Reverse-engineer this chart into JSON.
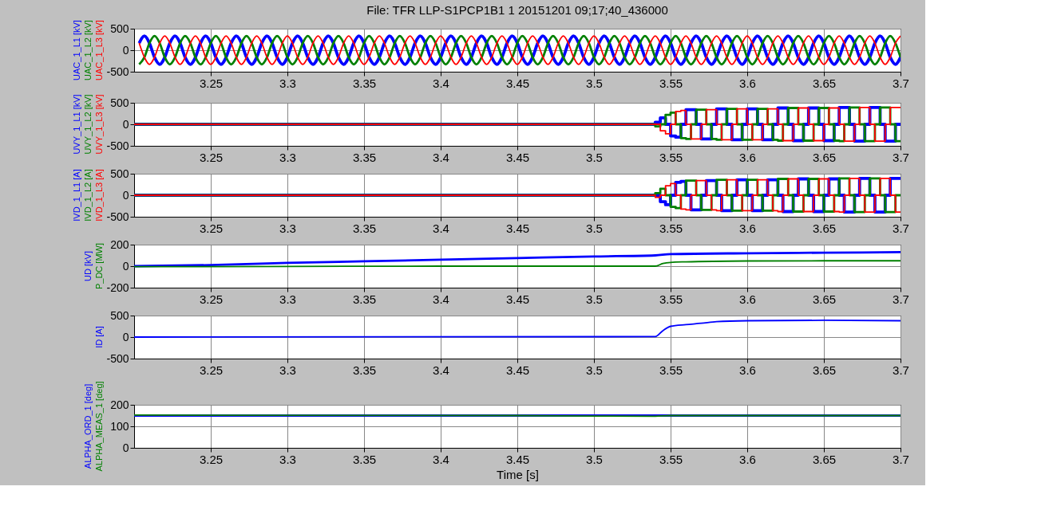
{
  "chart_data": [
    {
      "type": "line",
      "title": "File: TFR LLP-S1PCP1B1 1 20151201 09;17;40_436000",
      "xlim": [
        3.2,
        3.7
      ],
      "xticks": [
        3.25,
        3.3,
        3.35,
        3.4,
        3.45,
        3.5,
        3.55,
        3.6,
        3.65,
        3.7
      ],
      "ylim": [
        -500,
        500
      ],
      "yticks": [
        -500,
        0,
        500
      ],
      "grid": true,
      "x": [
        3.2033,
        3.2067,
        3.21,
        3.2133,
        3.2167,
        3.22,
        3.2233,
        3.2267,
        3.23,
        3.2333,
        3.2367,
        3.24,
        3.2433,
        3.2467,
        3.25,
        3.2533,
        3.2567,
        3.26,
        3.2633,
        3.2667,
        3.27,
        3.2733,
        3.2767,
        3.28,
        3.2833,
        3.2867,
        3.29,
        3.2933,
        3.2967,
        3.3,
        3.3033,
        3.3067,
        3.31,
        3.3133,
        3.3167,
        3.32,
        3.3233,
        3.3267,
        3.33,
        3.3333,
        3.3367,
        3.34,
        3.3433,
        3.3467,
        3.35,
        3.3533,
        3.3567,
        3.36,
        3.3633,
        3.3667,
        3.37,
        3.3733,
        3.3767,
        3.38,
        3.3833,
        3.3867,
        3.39,
        3.3933,
        3.3967,
        3.4,
        3.4033,
        3.4067,
        3.41,
        3.4133,
        3.4167,
        3.42,
        3.4233,
        3.4267,
        3.43,
        3.4333,
        3.4367,
        3.44,
        3.4433,
        3.4467,
        3.45,
        3.4533,
        3.4567,
        3.46,
        3.4633,
        3.4667,
        3.47,
        3.4733,
        3.4767,
        3.48,
        3.4833,
        3.4867,
        3.49,
        3.4933,
        3.4967,
        3.5,
        3.5033,
        3.5067,
        3.51,
        3.5133,
        3.5167,
        3.52,
        3.5233,
        3.5267,
        3.53,
        3.5333,
        3.5367,
        3.54,
        3.5433,
        3.5467,
        3.55,
        3.5533,
        3.5567,
        3.56,
        3.5633,
        3.5667,
        3.57,
        3.5733,
        3.5767,
        3.58,
        3.5833,
        3.5867,
        3.59,
        3.5933,
        3.5967,
        3.6,
        3.6033,
        3.6067,
        3.61,
        3.6133,
        3.6167,
        3.62,
        3.6233,
        3.6267,
        3.63,
        3.6333,
        3.6367,
        3.64,
        3.6433,
        3.6467,
        3.65,
        3.6533,
        3.6567,
        3.66,
        3.6633,
        3.6667,
        3.67,
        3.6733,
        3.6767,
        3.68,
        3.6833,
        3.6867,
        3.69,
        3.6933,
        3.6967,
        3.7
      ],
      "series": [
        {
          "name": "UAC_1_L1 [kV]",
          "color": "#0000ff",
          "values": [
            165,
            330,
            165,
            -165,
            -330,
            -165,
            165,
            330,
            165,
            -165,
            -330,
            -165,
            165,
            330,
            165,
            -165,
            -330,
            -165,
            165,
            330,
            165,
            -165,
            -330,
            -165,
            165,
            330,
            165,
            -165,
            -330,
            -165,
            165,
            330,
            165,
            -165,
            -330,
            -165,
            165,
            330,
            165,
            -165,
            -330,
            -165,
            165,
            330,
            165,
            -165,
            -330,
            -165,
            165,
            330,
            165,
            -165,
            -330,
            -165,
            165,
            330,
            165,
            -165,
            -330,
            -165,
            165,
            330,
            165,
            -165,
            -330,
            -165,
            165,
            330,
            165,
            -165,
            -330,
            -165,
            165,
            330,
            165,
            -165,
            -330,
            -165,
            165,
            330,
            165,
            -165,
            -330,
            -165,
            165,
            330,
            165,
            -165,
            -330,
            -165,
            165,
            330,
            165,
            -165,
            -330,
            -165,
            165,
            330,
            165,
            -165,
            -330,
            -165,
            165,
            330,
            165,
            -165,
            -330,
            -165,
            165,
            330,
            165,
            -165,
            -330,
            -165,
            165,
            330,
            165,
            -165,
            -330,
            -165,
            165,
            330,
            165,
            -165,
            -330,
            -165,
            165,
            330,
            165,
            -165,
            -330,
            -165,
            165,
            330,
            165,
            -165,
            -330,
            -165,
            165,
            330,
            165,
            -165,
            -330,
            -165,
            165,
            330,
            165,
            -165,
            -330,
            -165
          ]
        },
        {
          "name": "UAC_1_L2 [kV]",
          "color": "#008000",
          "values": [
            -330,
            -165,
            165,
            330,
            165,
            -165,
            -330,
            -165,
            165,
            330,
            165,
            -165,
            -330,
            -165,
            165,
            330,
            165,
            -165,
            -330,
            -165,
            165,
            330,
            165,
            -165,
            -330,
            -165,
            165,
            330,
            165,
            -165,
            -330,
            -165,
            165,
            330,
            165,
            -165,
            -330,
            -165,
            165,
            330,
            165,
            -165,
            -330,
            -165,
            165,
            330,
            165,
            -165,
            -330,
            -165,
            165,
            330,
            165,
            -165,
            -330,
            -165,
            165,
            330,
            165,
            -165,
            -330,
            -165,
            165,
            330,
            165,
            -165,
            -330,
            -165,
            165,
            330,
            165,
            -165,
            -330,
            -165,
            165,
            330,
            165,
            -165,
            -330,
            -165,
            165,
            330,
            165,
            -165,
            -330,
            -165,
            165,
            330,
            165,
            -165,
            -330,
            -165,
            165,
            330,
            165,
            -165,
            -330,
            -165,
            165,
            330,
            165,
            -165,
            -330,
            -165,
            165,
            330,
            165,
            -165,
            -330,
            -165,
            165,
            330,
            165,
            -165,
            -330,
            -165,
            165,
            330,
            165,
            -165,
            -330,
            -165,
            165,
            330,
            165,
            -165,
            -330,
            -165,
            165,
            330,
            165,
            -165,
            -330,
            -165,
            165,
            330,
            165,
            -165,
            -330,
            -165,
            165,
            330,
            165,
            -165,
            -330,
            -165,
            165,
            330,
            165,
            -165
          ]
        },
        {
          "name": "UAC_1_L3 [kV]",
          "color": "#ff0000",
          "values": [
            165,
            -165,
            -330,
            -165,
            165,
            330,
            165,
            -165,
            -330,
            -165,
            165,
            330,
            165,
            -165,
            -330,
            -165,
            165,
            330,
            165,
            -165,
            -330,
            -165,
            165,
            330,
            165,
            -165,
            -330,
            -165,
            165,
            330,
            165,
            -165,
            -330,
            -165,
            165,
            330,
            165,
            -165,
            -330,
            -165,
            165,
            330,
            165,
            -165,
            -330,
            -165,
            165,
            330,
            165,
            -165,
            -330,
            -165,
            165,
            330,
            165,
            -165,
            -330,
            -165,
            165,
            330,
            165,
            -165,
            -330,
            -165,
            165,
            330,
            165,
            -165,
            -330,
            -165,
            165,
            330,
            165,
            -165,
            -330,
            -165,
            165,
            330,
            165,
            -165,
            -330,
            -165,
            165,
            330,
            165,
            -165,
            -330,
            -165,
            165,
            330,
            165,
            -165,
            -330,
            -165,
            165,
            330,
            165,
            -165,
            -330,
            -165,
            165,
            330,
            165,
            -165,
            -330,
            -165,
            165,
            330,
            165,
            -165,
            -330,
            -165,
            165,
            330,
            165,
            -165,
            -330,
            -165,
            165,
            330,
            165,
            -165,
            -330,
            -165,
            165,
            330,
            165,
            -165,
            -330,
            -165,
            165,
            330,
            165,
            -165,
            -330,
            -165,
            165,
            330,
            165,
            -165,
            -330,
            -165,
            165,
            330,
            165,
            -165,
            -330,
            -165,
            165,
            330
          ]
        }
      ]
    },
    {
      "type": "step",
      "xlim": [
        3.2,
        3.7
      ],
      "xticks": [
        3.25,
        3.3,
        3.35,
        3.4,
        3.45,
        3.5,
        3.55,
        3.6,
        3.65,
        3.7
      ],
      "ylim": [
        -500,
        500
      ],
      "yticks": [
        -500,
        0,
        500
      ],
      "grid": true,
      "x": [
        3.2,
        3.54,
        3.5433,
        3.5467,
        3.55,
        3.5533,
        3.5567,
        3.56,
        3.5633,
        3.5667,
        3.57,
        3.5733,
        3.5767,
        3.58,
        3.5833,
        3.5867,
        3.59,
        3.5933,
        3.5967,
        3.6,
        3.6033,
        3.6067,
        3.61,
        3.6133,
        3.6167,
        3.62,
        3.6233,
        3.6267,
        3.63,
        3.6333,
        3.6367,
        3.64,
        3.6433,
        3.6467,
        3.65,
        3.6533,
        3.6567,
        3.66,
        3.6633,
        3.6667,
        3.67,
        3.6733,
        3.6767,
        3.68,
        3.6833,
        3.6867,
        3.69,
        3.6933,
        3.6967,
        3.7
      ],
      "series": [
        {
          "name": "UVY_1_L1 [kV]",
          "color": "#0000ff",
          "values": [
            0,
            50,
            150,
            0,
            -270,
            -300,
            0,
            340,
            340,
            0,
            -340,
            -340,
            0,
            360,
            360,
            0,
            -360,
            -360,
            0,
            360,
            360,
            0,
            -360,
            -360,
            0,
            380,
            380,
            0,
            -380,
            -380,
            0,
            380,
            380,
            0,
            -380,
            -380,
            0,
            390,
            390,
            0,
            -390,
            -390,
            0,
            390,
            390,
            0,
            -390,
            -390,
            0,
            0
          ]
        },
        {
          "name": "UVY_1_L2 [kV]",
          "color": "#008000",
          "values": [
            0,
            -50,
            0,
            220,
            270,
            0,
            -320,
            -340,
            0,
            340,
            340,
            0,
            -340,
            -360,
            0,
            360,
            360,
            0,
            -360,
            -360,
            0,
            360,
            360,
            0,
            -360,
            -380,
            0,
            380,
            380,
            0,
            -380,
            -380,
            0,
            380,
            380,
            0,
            -380,
            -390,
            0,
            390,
            390,
            0,
            -390,
            -390,
            0,
            390,
            390,
            0,
            -390,
            -390
          ]
        },
        {
          "name": "UVY_1_L3 [kV]",
          "color": "#ff0000",
          "values": [
            0,
            0,
            -150,
            -220,
            0,
            300,
            320,
            0,
            -340,
            -340,
            0,
            340,
            340,
            0,
            -360,
            -360,
            0,
            360,
            360,
            0,
            -360,
            -360,
            0,
            360,
            360,
            0,
            -380,
            -380,
            0,
            380,
            380,
            0,
            -380,
            -380,
            0,
            380,
            380,
            0,
            -390,
            -390,
            0,
            390,
            390,
            0,
            -390,
            -390,
            0,
            390,
            390,
            390
          ]
        }
      ]
    },
    {
      "type": "step",
      "xlim": [
        3.2,
        3.7
      ],
      "xticks": [
        3.25,
        3.3,
        3.35,
        3.4,
        3.45,
        3.5,
        3.55,
        3.6,
        3.65,
        3.7
      ],
      "ylim": [
        -500,
        500
      ],
      "yticks": [
        -500,
        0,
        500
      ],
      "grid": true,
      "x": [
        3.2,
        3.54,
        3.5433,
        3.5467,
        3.55,
        3.5533,
        3.5567,
        3.56,
        3.5633,
        3.5667,
        3.57,
        3.5733,
        3.5767,
        3.58,
        3.5833,
        3.5867,
        3.59,
        3.5933,
        3.5967,
        3.6,
        3.6033,
        3.6067,
        3.61,
        3.6133,
        3.6167,
        3.62,
        3.6233,
        3.6267,
        3.63,
        3.6333,
        3.6367,
        3.64,
        3.6433,
        3.6467,
        3.65,
        3.6533,
        3.6567,
        3.66,
        3.6633,
        3.6667,
        3.67,
        3.6733,
        3.6767,
        3.68,
        3.6833,
        3.6867,
        3.69,
        3.6933,
        3.6967,
        3.7
      ],
      "series": [
        {
          "name": "IVD_1_L1 [A]",
          "color": "#0000ff",
          "values": [
            0,
            0,
            -150,
            -220,
            0,
            300,
            320,
            0,
            -340,
            -340,
            0,
            340,
            340,
            0,
            -360,
            -360,
            0,
            360,
            360,
            0,
            -360,
            -360,
            0,
            360,
            360,
            0,
            -380,
            -380,
            0,
            380,
            380,
            0,
            -380,
            -380,
            0,
            380,
            380,
            0,
            -390,
            -390,
            0,
            390,
            390,
            0,
            -390,
            -390,
            0,
            390,
            390,
            390
          ]
        },
        {
          "name": "IVD_1_L2 [A]",
          "color": "#008000",
          "values": [
            0,
            50,
            150,
            0,
            -270,
            -300,
            0,
            340,
            340,
            0,
            -340,
            -340,
            0,
            360,
            360,
            0,
            -360,
            -360,
            0,
            360,
            360,
            0,
            -360,
            -360,
            0,
            380,
            380,
            0,
            -380,
            -380,
            0,
            380,
            380,
            0,
            -380,
            -380,
            0,
            390,
            390,
            0,
            -390,
            -390,
            0,
            390,
            390,
            0,
            -390,
            -390,
            0,
            0
          ]
        },
        {
          "name": "IVD_1_L3 [A]",
          "color": "#ff0000",
          "values": [
            0,
            -50,
            0,
            220,
            270,
            0,
            -320,
            -340,
            0,
            340,
            340,
            0,
            -340,
            -360,
            0,
            360,
            360,
            0,
            -360,
            -360,
            0,
            360,
            360,
            0,
            -360,
            -380,
            0,
            380,
            380,
            0,
            -380,
            -380,
            0,
            380,
            380,
            0,
            -380,
            -390,
            0,
            390,
            390,
            0,
            -390,
            -390,
            0,
            390,
            390,
            0,
            -390,
            -390
          ]
        }
      ]
    },
    {
      "type": "line",
      "xlim": [
        3.2,
        3.7
      ],
      "xticks": [
        3.25,
        3.3,
        3.35,
        3.4,
        3.45,
        3.5,
        3.55,
        3.6,
        3.65,
        3.7
      ],
      "ylim": [
        -200,
        200
      ],
      "yticks": [
        -200,
        0,
        200
      ],
      "grid": true,
      "series": [
        {
          "name": "UD [kV]",
          "color": "#0000ff",
          "x": [
            3.2,
            3.25,
            3.3,
            3.35,
            3.4,
            3.45,
            3.5,
            3.54,
            3.55,
            3.6,
            3.65,
            3.7
          ],
          "values": [
            0,
            10,
            30,
            45,
            60,
            75,
            90,
            100,
            112,
            120,
            125,
            130
          ]
        },
        {
          "name": "P_DC [MW]",
          "color": "#008000",
          "x": [
            3.2,
            3.3,
            3.4,
            3.54,
            3.545,
            3.55,
            3.56,
            3.6,
            3.65,
            3.7
          ],
          "values": [
            -5,
            -3,
            0,
            0,
            25,
            35,
            40,
            48,
            50,
            50
          ]
        }
      ]
    },
    {
      "type": "line",
      "xlim": [
        3.2,
        3.7
      ],
      "xticks": [
        3.25,
        3.3,
        3.35,
        3.4,
        3.45,
        3.5,
        3.55,
        3.6,
        3.65,
        3.7
      ],
      "ylim": [
        -500,
        500
      ],
      "yticks": [
        -500,
        0,
        500
      ],
      "grid": true,
      "series": [
        {
          "name": "ID [A]",
          "color": "#0000ff",
          "x": [
            3.2,
            3.54,
            3.545,
            3.55,
            3.56,
            3.57,
            3.58,
            3.6,
            3.65,
            3.7
          ],
          "values": [
            0,
            10,
            150,
            250,
            290,
            320,
            360,
            380,
            390,
            380
          ]
        }
      ]
    },
    {
      "type": "line",
      "xlabel": "Time [s]",
      "xlim": [
        3.2,
        3.7
      ],
      "xticks": [
        3.25,
        3.3,
        3.35,
        3.4,
        3.45,
        3.5,
        3.55,
        3.6,
        3.65,
        3.7
      ],
      "ylim": [
        0,
        200
      ],
      "yticks": [
        0,
        100,
        200
      ],
      "grid": true,
      "series": [
        {
          "name": "ALPHA_ORD_1 [deg]",
          "color": "#0000ff",
          "x": [
            3.2,
            3.7
          ],
          "values": [
            150,
            150
          ]
        },
        {
          "name": "ALPHA_MEAS_1 [deg]",
          "color": "#008000",
          "x": [
            3.2,
            3.45,
            3.5,
            3.54,
            3.55,
            3.7
          ],
          "values": [
            152,
            150,
            148,
            147,
            150,
            150
          ]
        }
      ]
    }
  ]
}
